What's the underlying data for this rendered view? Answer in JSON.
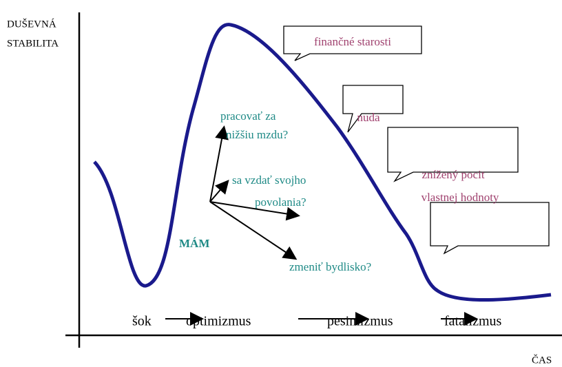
{
  "axes": {
    "y_label": [
      "DUŠEVNÁ",
      "STABILITA"
    ],
    "x_label": "ČAS"
  },
  "bubbles": [
    {
      "lines": [
        "finančné starosti"
      ]
    },
    {
      "lines": [
        "nuda"
      ]
    },
    {
      "lines": [
        "znížený pocit",
        "vlastnej hodnoty"
      ]
    }
  ],
  "center": "MÁM",
  "options": [
    {
      "lines": [
        "pracovať za",
        "nižšiu mzdu?"
      ]
    },
    {
      "lines": [
        "sa vzdať svojho",
        "povolania?"
      ]
    },
    {
      "lines": [
        "zmeniť bydlisko?"
      ]
    }
  ],
  "stages": [
    "šok",
    "optimizmus",
    "pesimizmus",
    "fatalizmus"
  ]
}
